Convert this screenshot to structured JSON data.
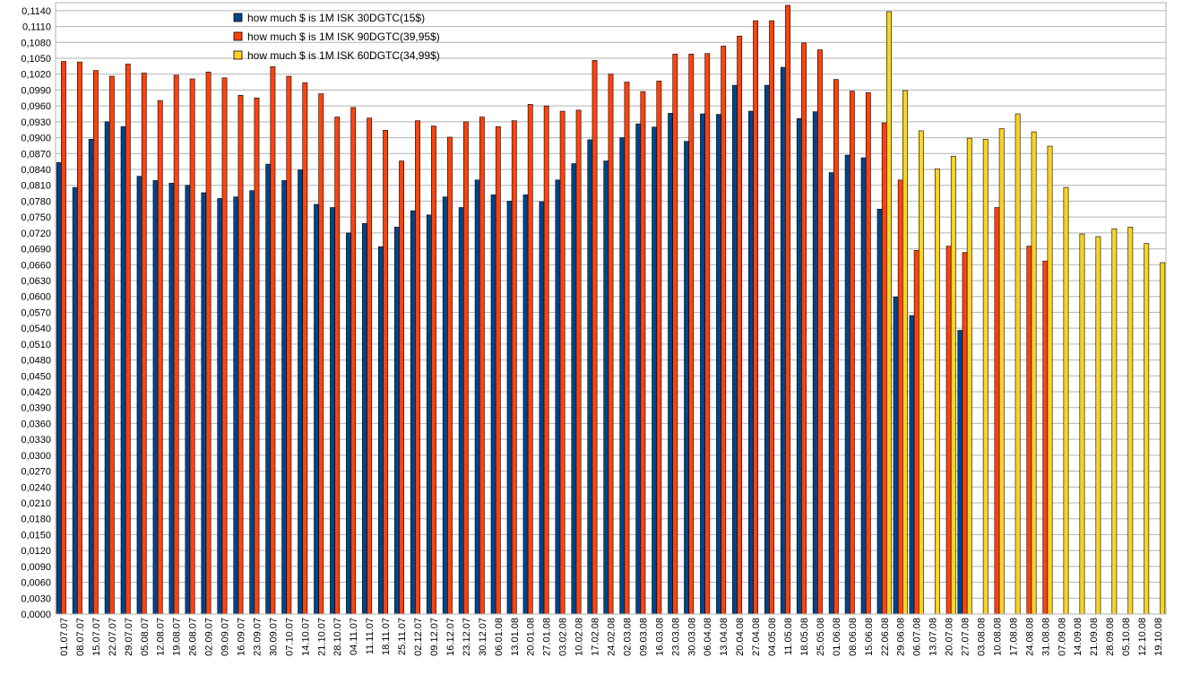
{
  "chart_data": {
    "type": "bar",
    "title": "",
    "xlabel": "",
    "ylabel": "",
    "ylim": [
      0,
      0.1155
    ],
    "ytick_step": 0.003,
    "ytick_labels": [
      "0,0000",
      "0,0030",
      "0,0060",
      "0,0090",
      "0,0120",
      "0,0150",
      "0,0180",
      "0,0210",
      "0,0240",
      "0,0270",
      "0,0300",
      "0,0330",
      "0,0360",
      "0,0390",
      "0,0420",
      "0,0450",
      "0,0480",
      "0,0510",
      "0,0540",
      "0,0570",
      "0,0600",
      "0,0630",
      "0,0660",
      "0,0690",
      "0,0720",
      "0,0750",
      "0,0780",
      "0,0810",
      "0,0840",
      "0,0870",
      "0,0900",
      "0,0930",
      "0,0960",
      "0,0990",
      "0,1020",
      "0,1050",
      "0,1080",
      "0,1110",
      "0,1140"
    ],
    "grid": true,
    "legend_position": "top-left",
    "categories": [
      "01.07.07",
      "08.07.07",
      "15.07.07",
      "22.07.07",
      "29.07.07",
      "05.08.07",
      "12.08.07",
      "19.08.07",
      "26.08.07",
      "02.09.07",
      "09.09.07",
      "16.09.07",
      "23.09.07",
      "30.09.07",
      "07.10.07",
      "14.10.07",
      "21.10.07",
      "28.10.07",
      "04.11.07",
      "11.11.07",
      "18.11.07",
      "25.11.07",
      "02.12.07",
      "09.12.07",
      "16.12.07",
      "23.12.07",
      "30.12.07",
      "06.01.08",
      "13.01.08",
      "20.01.08",
      "27.01.08",
      "03.02.08",
      "10.02.08",
      "17.02.08",
      "24.02.08",
      "02.03.08",
      "09.03.08",
      "16.03.08",
      "23.03.08",
      "30.03.08",
      "06.04.08",
      "13.04.08",
      "20.04.08",
      "27.04.08",
      "04.05.08",
      "11.05.08",
      "18.05.08",
      "25.05.08",
      "01.06.08",
      "08.06.08",
      "15.06.08",
      "22.06.08",
      "29.06.08",
      "06.07.08",
      "13.07.08",
      "20.07.08",
      "27.07.08",
      "03.08.08",
      "10.08.08",
      "17.08.08",
      "24.08.08",
      "31.08.08",
      "07.09.08",
      "14.09.08",
      "21.09.08",
      "28.09.08",
      "05.10.08",
      "12.10.08",
      "19.10.08"
    ],
    "series": [
      {
        "name": "how much $ is 1M ISK 30DGTC(15$)",
        "color": "#004586",
        "values": [
          0.0853,
          0.0806,
          0.0897,
          0.093,
          0.0921,
          0.0827,
          0.0819,
          0.0814,
          0.081,
          0.0796,
          0.0785,
          0.0788,
          0.08,
          0.085,
          0.0819,
          0.0839,
          0.0774,
          0.0768,
          0.072,
          0.0738,
          0.0694,
          0.0731,
          0.0762,
          0.0754,
          0.0788,
          0.0768,
          0.082,
          0.0792,
          0.078,
          0.0792,
          0.0779,
          0.082,
          0.0851,
          0.0896,
          0.0856,
          0.09,
          0.0926,
          0.092,
          0.0946,
          0.0893,
          0.0945,
          0.0944,
          0.0999,
          0.095,
          0.0999,
          0.1033,
          0.0936,
          0.0949,
          0.0834,
          0.0867,
          0.0862,
          0.0765,
          0.0599,
          0.0564,
          null,
          null,
          0.0536,
          null,
          null,
          null,
          null,
          null,
          null,
          null,
          null,
          null,
          null,
          null,
          null
        ]
      },
      {
        "name": "how much $ is 1M ISK 90DGTC(39,95$)",
        "color": "#ff420e",
        "values": [
          0.1044,
          0.1043,
          0.1027,
          0.1016,
          0.1039,
          0.1022,
          0.097,
          0.1018,
          0.1011,
          0.1024,
          0.1013,
          0.098,
          0.0975,
          0.1034,
          0.1016,
          0.1004,
          0.0983,
          0.0939,
          0.0957,
          0.0937,
          0.0914,
          0.0856,
          0.0932,
          0.0922,
          0.0901,
          0.093,
          0.0939,
          0.0921,
          0.0932,
          0.0963,
          0.096,
          0.095,
          0.0952,
          0.1046,
          0.102,
          0.1005,
          0.0987,
          0.1007,
          0.1058,
          0.1058,
          0.1059,
          0.1073,
          0.1092,
          0.1121,
          0.1121,
          0.115,
          0.1079,
          0.1066,
          0.101,
          0.0988,
          0.0985,
          0.0928,
          0.082,
          0.0687,
          null,
          0.0695,
          0.0683,
          null,
          0.0768,
          null,
          0.0695,
          0.0667,
          null,
          null,
          null,
          null,
          null,
          null,
          null
        ]
      },
      {
        "name": "how much $ is 1M ISK 60DGTC(34,99$)",
        "color": "#ffd320",
        "values": [
          null,
          null,
          null,
          null,
          null,
          null,
          null,
          null,
          null,
          null,
          null,
          null,
          null,
          null,
          null,
          null,
          null,
          null,
          null,
          null,
          null,
          null,
          null,
          null,
          null,
          null,
          null,
          null,
          null,
          null,
          null,
          null,
          null,
          null,
          null,
          null,
          null,
          null,
          null,
          null,
          null,
          null,
          null,
          null,
          null,
          null,
          null,
          null,
          null,
          null,
          null,
          0.1138,
          0.0989,
          0.0913,
          0.0841,
          0.0865,
          0.0899,
          0.0897,
          0.0917,
          0.0945,
          0.0911,
          0.0884,
          0.0806,
          0.0718,
          0.0713,
          0.0728,
          0.0731,
          0.07,
          0.0664
        ]
      }
    ]
  }
}
